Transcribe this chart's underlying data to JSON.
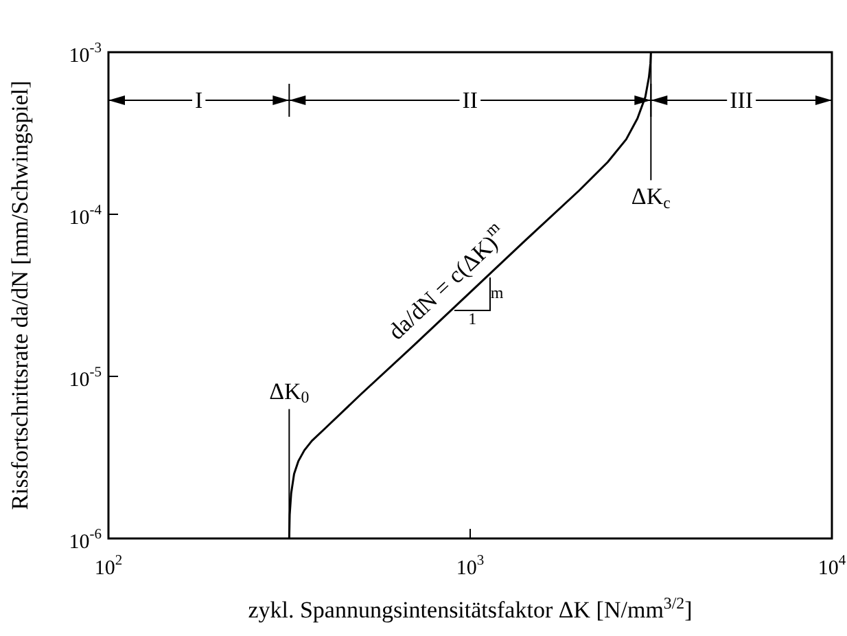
{
  "chart_data": {
    "type": "line",
    "xlabel": "zykl. Spannungsintensitätsfaktor ΔK [N/mm$^{3/2}$]",
    "ylabel": "Rissfortschrittsrate da/dN [mm/Schwingspiel]",
    "log": "xy",
    "grid": false,
    "xlim": [
      100,
      10000
    ],
    "ylim": [
      1e-06,
      0.001
    ],
    "xticks": [
      {
        "value": 100,
        "label": "10$^{2}$"
      },
      {
        "value": 1000,
        "label": "10$^{3}$"
      },
      {
        "value": 10000,
        "label": "10$^{4}$"
      }
    ],
    "yticks": [
      {
        "value": 1e-06,
        "label": "10$^{-6}$"
      },
      {
        "value": 1e-05,
        "label": "10$^{-5}$"
      },
      {
        "value": 0.0001,
        "label": "10$^{-4}$"
      },
      {
        "value": 0.001,
        "label": "10$^{-3}$"
      }
    ],
    "series": [
      {
        "color": "#000000",
        "x": [
          316,
          317,
          320,
          326,
          335,
          348,
          365,
          398,
          500,
          700,
          1000,
          1400,
          2000,
          2400,
          2700,
          2900,
          3050,
          3120,
          3150,
          3160
        ],
        "values": [
          1e-06,
          1.4e-06,
          1.9e-06,
          2.5e-06,
          3e-06,
          3.5e-06,
          4e-06,
          4.8e-06,
          7.8e-06,
          1.56e-05,
          3.3e-05,
          6.7e-05,
          0.00014,
          0.00021,
          0.00029,
          0.00039,
          0.00053,
          0.0007,
          0.00085,
          0.001
        ]
      }
    ],
    "ref_lines": [
      {
        "axis": "x",
        "value": 316,
        "label": "ΔK$_{0}$"
      },
      {
        "axis": "x",
        "value": 3160,
        "label": "ΔK$_{c}$"
      }
    ],
    "annotations": [
      "I",
      "II",
      "III",
      "da/dN = c(ΔK)$^{m}$",
      "m",
      "1"
    ]
  }
}
